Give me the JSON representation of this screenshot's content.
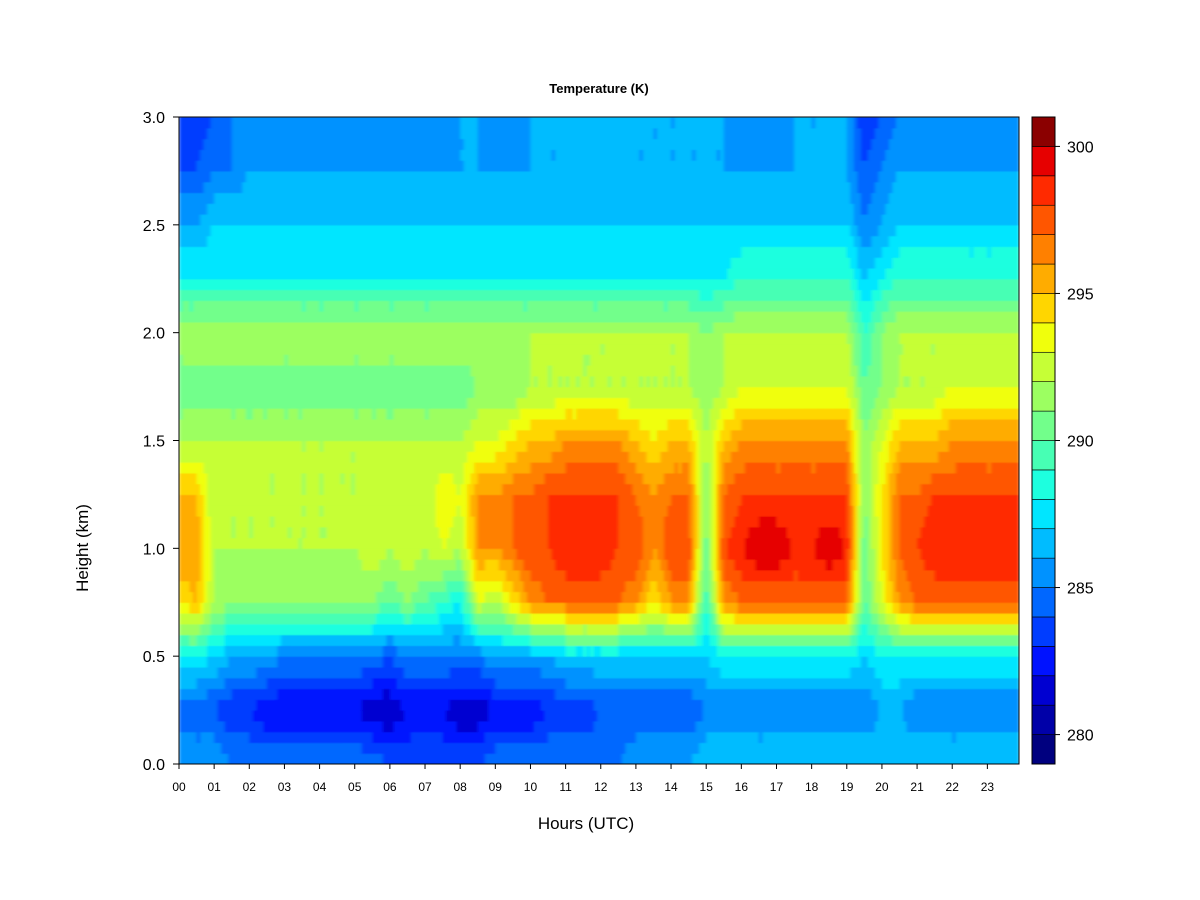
{
  "chart_data": {
    "type": "heatmap",
    "title": "Temperature (K)",
    "xlabel": "Hours (UTC)",
    "ylabel": "Height (km)",
    "xlim": [
      0,
      23.9
    ],
    "ylim": [
      0.0,
      3.0
    ],
    "x_ticks": [
      "00",
      "01",
      "02",
      "03",
      "04",
      "05",
      "06",
      "07",
      "08",
      "09",
      "10",
      "11",
      "12",
      "13",
      "14",
      "15",
      "16",
      "17",
      "18",
      "19",
      "20",
      "21",
      "22",
      "23"
    ],
    "y_ticks": [
      "0.0",
      "0.5",
      "1.0",
      "1.5",
      "2.0",
      "2.5",
      "3.0"
    ],
    "colorbar": {
      "range": [
        279,
        301
      ],
      "ticks": [
        "280",
        "285",
        "290",
        "295",
        "300"
      ],
      "levels": [
        {
          "from": 279,
          "to": 280,
          "color": "#00007f"
        },
        {
          "from": 280,
          "to": 281,
          "color": "#0000a8"
        },
        {
          "from": 281,
          "to": 282,
          "color": "#0000d1"
        },
        {
          "from": 282,
          "to": 283,
          "color": "#0012ff"
        },
        {
          "from": 283,
          "to": 284,
          "color": "#003dff"
        },
        {
          "from": 284,
          "to": 285,
          "color": "#0067ff"
        },
        {
          "from": 285,
          "to": 286,
          "color": "#0092ff"
        },
        {
          "from": 286,
          "to": 287,
          "color": "#00bcff"
        },
        {
          "from": 287,
          "to": 288,
          "color": "#00e6ff"
        },
        {
          "from": 288,
          "to": 289,
          "color": "#1dffdf"
        },
        {
          "from": 289,
          "to": 290,
          "color": "#47ffb4"
        },
        {
          "from": 290,
          "to": 291,
          "color": "#72ff8b"
        },
        {
          "from": 291,
          "to": 292,
          "color": "#9cff61"
        },
        {
          "from": 292,
          "to": 293,
          "color": "#c6ff36"
        },
        {
          "from": 293,
          "to": 294,
          "color": "#f0ff0c"
        },
        {
          "from": 294,
          "to": 295,
          "color": "#ffd600"
        },
        {
          "from": 295,
          "to": 296,
          "color": "#ffac00"
        },
        {
          "from": 296,
          "to": 297,
          "color": "#ff8000"
        },
        {
          "from": 297,
          "to": 298,
          "color": "#ff5600"
        },
        {
          "from": 298,
          "to": 299,
          "color": "#ff2a00"
        },
        {
          "from": 299,
          "to": 300,
          "color": "#e60000"
        },
        {
          "from": 300,
          "to": 301,
          "color": "#8b0000"
        }
      ]
    },
    "grid_hours": [
      0,
      0.5,
      1,
      1.5,
      2,
      2.5,
      3,
      3.5,
      4,
      4.5,
      5,
      5.5,
      6,
      6.5,
      7,
      7.5,
      8,
      8.5,
      9,
      9.5,
      10,
      10.5,
      11,
      11.5,
      12,
      12.5,
      13,
      13.5,
      14,
      14.5,
      15,
      15.5,
      16,
      16.5,
      17,
      17.5,
      18,
      18.5,
      19,
      19.5,
      20,
      20.5,
      21,
      21.5,
      22,
      22.5,
      23,
      23.5
    ],
    "grid_heights_km": [
      0.0,
      0.25,
      0.5,
      0.75,
      1.0,
      1.25,
      1.5,
      1.75,
      2.0,
      2.25,
      2.5,
      2.75,
      3.0
    ],
    "temperature_K_rows_by_height": [
      [
        286,
        286,
        286,
        285,
        285,
        285,
        285,
        285,
        285,
        285,
        285,
        285,
        284,
        284,
        284,
        284,
        284,
        284,
        285,
        285,
        285,
        285,
        285,
        285,
        285,
        285,
        286,
        286,
        286,
        286,
        287,
        287,
        287,
        287,
        287,
        287,
        287,
        287,
        287,
        287,
        287,
        287,
        287,
        287,
        287,
        287,
        287,
        287
      ],
      [
        284,
        284,
        284,
        283,
        283,
        282,
        282,
        282,
        282,
        282,
        282,
        281,
        281,
        282,
        282,
        282,
        281,
        281,
        282,
        282,
        282,
        283,
        283,
        283,
        284,
        284,
        284,
        284,
        284,
        284,
        285,
        285,
        285,
        285,
        285,
        285,
        285,
        285,
        285,
        285,
        286,
        286,
        285,
        285,
        285,
        285,
        285,
        285
      ],
      [
        288,
        288,
        287,
        286,
        286,
        286,
        285,
        285,
        285,
        285,
        285,
        285,
        284,
        285,
        285,
        285,
        285,
        285,
        286,
        286,
        286,
        286,
        287,
        287,
        287,
        287,
        287,
        287,
        287,
        287,
        287,
        288,
        288,
        288,
        288,
        288,
        288,
        288,
        288,
        287,
        288,
        288,
        288,
        288,
        288,
        288,
        288,
        288
      ],
      [
        294,
        295,
        292,
        291,
        291,
        291,
        291,
        291,
        291,
        291,
        291,
        291,
        290,
        291,
        290,
        289,
        288,
        293,
        292,
        294,
        296,
        297,
        297,
        297,
        297,
        297,
        296,
        294,
        296,
        296,
        289,
        296,
        297,
        297,
        297,
        297,
        297,
        297,
        297,
        290,
        293,
        296,
        297,
        297,
        297,
        297,
        297,
        297
      ],
      [
        296,
        296,
        292,
        292,
        292,
        292,
        292,
        292,
        292,
        292,
        292,
        293,
        292,
        293,
        292,
        293,
        292,
        296,
        296,
        297,
        298,
        298,
        299,
        299,
        299,
        298,
        298,
        296,
        298,
        298,
        290,
        298,
        299,
        300,
        300,
        299,
        299,
        300,
        299,
        290,
        294,
        297,
        298,
        299,
        299,
        299,
        299,
        299
      ],
      [
        295,
        295,
        292,
        292,
        292,
        292,
        292,
        292,
        292,
        292,
        292,
        293,
        292,
        293,
        292,
        294,
        293,
        296,
        296,
        297,
        297,
        298,
        298,
        298,
        298,
        298,
        297,
        296,
        297,
        297,
        291,
        297,
        298,
        298,
        298,
        298,
        298,
        298,
        298,
        291,
        294,
        297,
        297,
        298,
        298,
        298,
        298,
        298
      ],
      [
        292,
        292,
        292,
        292,
        292,
        292,
        292,
        292,
        292,
        292,
        292,
        292,
        292,
        292,
        292,
        292,
        292,
        293,
        293,
        294,
        295,
        295,
        296,
        296,
        296,
        296,
        295,
        294,
        295,
        295,
        292,
        295,
        296,
        296,
        296,
        296,
        296,
        296,
        296,
        291,
        293,
        295,
        295,
        295,
        296,
        296,
        296,
        296
      ],
      [
        290,
        290,
        290,
        290,
        290,
        290,
        290,
        290,
        290,
        290,
        290,
        290,
        290,
        290,
        290,
        290,
        290,
        291,
        291,
        291,
        292,
        292,
        292,
        292,
        292,
        292,
        292,
        292,
        292,
        292,
        291,
        292,
        293,
        293,
        293,
        293,
        293,
        293,
        293,
        290,
        291,
        292,
        292,
        292,
        293,
        293,
        293,
        293
      ],
      [
        292,
        292,
        292,
        292,
        292,
        292,
        292,
        292,
        292,
        292,
        292,
        292,
        292,
        292,
        292,
        292,
        292,
        292,
        292,
        292,
        292,
        292,
        292,
        292,
        292,
        292,
        292,
        292,
        292,
        292,
        291,
        292,
        292,
        292,
        292,
        292,
        292,
        292,
        292,
        289,
        291,
        292,
        292,
        292,
        292,
        292,
        292,
        292
      ],
      [
        288,
        288,
        288,
        288,
        288,
        288,
        288,
        288,
        288,
        288,
        288,
        288,
        288,
        288,
        288,
        288,
        288,
        288,
        288,
        288,
        288,
        288,
        288,
        288,
        288,
        288,
        288,
        288,
        288,
        288,
        288,
        288,
        289,
        289,
        289,
        289,
        289,
        289,
        289,
        287,
        288,
        289,
        289,
        289,
        289,
        289,
        289,
        289
      ],
      [
        286,
        286,
        287,
        287,
        287,
        287,
        287,
        287,
        287,
        287,
        287,
        287,
        287,
        287,
        287,
        287,
        287,
        287,
        287,
        287,
        287,
        287,
        287,
        287,
        287,
        287,
        287,
        287,
        287,
        287,
        287,
        287,
        287,
        287,
        287,
        287,
        287,
        287,
        287,
        285,
        286,
        287,
        287,
        287,
        287,
        287,
        287,
        287
      ],
      [
        284,
        284,
        285,
        285,
        286,
        286,
        286,
        286,
        286,
        286,
        286,
        286,
        286,
        286,
        286,
        286,
        286,
        286,
        286,
        286,
        286,
        286,
        286,
        286,
        286,
        286,
        286,
        286,
        286,
        286,
        286,
        286,
        286,
        286,
        286,
        286,
        286,
        286,
        286,
        284,
        285,
        286,
        286,
        286,
        286,
        286,
        286,
        286
      ],
      [
        283,
        283,
        284,
        285,
        285,
        285,
        285,
        285,
        285,
        285,
        285,
        285,
        285,
        285,
        285,
        285,
        286,
        286,
        285,
        285,
        286,
        286,
        286,
        286,
        286,
        286,
        286,
        286,
        286,
        286,
        286,
        286,
        285,
        285,
        285,
        286,
        286,
        286,
        286,
        283,
        284,
        285,
        285,
        285,
        285,
        285,
        285,
        285
      ]
    ]
  }
}
